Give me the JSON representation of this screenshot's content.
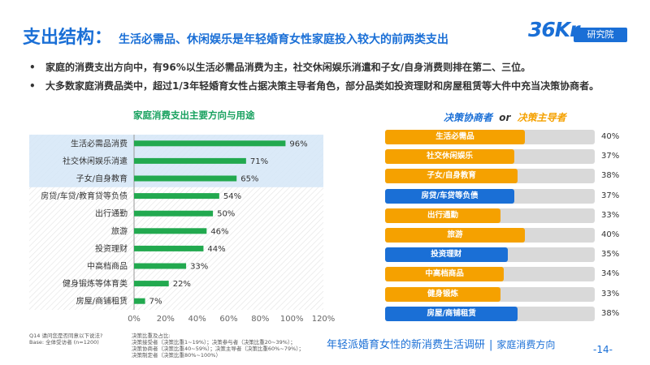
{
  "header": {
    "main": "支出结构：",
    "sub": "生活必需品、休闲娱乐是年轻婚育女性家庭投入较大的前两类支出"
  },
  "logo": {
    "mark": "36Kr",
    "badge": "研究院"
  },
  "bullets": [
    "家庭的消费支出方向中，有96%以生活必需品消费为主，社交休闲娱乐消遣和子女/自身消费则排在第二、三位。",
    "大多数家庭消费品类中，超过1/3年轻婚育女性占据决策主导者角色，部分品类如投资理财和房屋租赁等大件中充当决策协商者。"
  ],
  "bullet_symbol": "•",
  "left_chart_title": "家庭消费支出主要方向与用途",
  "right_chart_title": {
    "a": "决策协商者",
    "or": "or",
    "b": "决策主导者"
  },
  "colors": {
    "green": "#22a94f",
    "blue": "#1a6fd6",
    "orange": "#f5a100",
    "highlight": "#d5e6f7",
    "track": "#d9d9d9"
  },
  "chart_data": [
    {
      "type": "bar",
      "orientation": "horizontal",
      "categories": [
        "生活必需品消费",
        "社交休闲娱乐消遣",
        "子女/自身教育",
        "房贷/车贷/教育贷等负债",
        "出行通勤",
        "旅游",
        "投资理财",
        "中高档商品",
        "健身锻炼等体育类",
        "房屋/商铺租赁"
      ],
      "values": [
        96,
        71,
        65,
        54,
        50,
        46,
        44,
        33,
        22,
        7
      ],
      "value_labels": [
        "96%",
        "71%",
        "65%",
        "54%",
        "50%",
        "46%",
        "44%",
        "33%",
        "22%",
        "7%"
      ],
      "highlighted": [
        0,
        1,
        2
      ],
      "xlim": [
        0,
        120
      ],
      "xticks": [
        "0%",
        "20%",
        "40%",
        "60%",
        "80%",
        "100%",
        "120%"
      ],
      "title": "家庭消费支出主要方向与用途"
    },
    {
      "type": "bar",
      "orientation": "horizontal",
      "categories": [
        "生活必需品",
        "社交休闲娱乐",
        "子女/自身教育",
        "房贷/车贷等负债",
        "出行通勤",
        "旅游",
        "投资理财",
        "中高档商品",
        "健身锻炼",
        "房屋/商铺租赁"
      ],
      "values": [
        40,
        37,
        38,
        37,
        33,
        40,
        35,
        34,
        33,
        38
      ],
      "value_labels": [
        "40%",
        "37%",
        "38%",
        "37%",
        "33%",
        "40%",
        "35%",
        "34%",
        "33%",
        "38%"
      ],
      "roles": [
        "b",
        "b",
        "b",
        "a",
        "b",
        "b",
        "a",
        "b",
        "b",
        "a"
      ],
      "xlim": [
        0,
        60
      ]
    }
  ],
  "footnote_left": "Q14 请问您是否同意以下说法?\nBase: 全体受访者 (n=1200)",
  "footnote_right": "决策比重及占比:\n决策接受者（决策比重1~19%）；决策参与者（决策比重20~39%）；\n决策协商者（决策比重40~59%）；决策主导者（决策比重60%~79%）；\n决策制定者（决策比重80%~100%）",
  "footer": {
    "title": "年轻派婚育女性的新消费生活调研",
    "sep": "|",
    "sub": "家庭消费方向"
  },
  "page_number": "-14-"
}
